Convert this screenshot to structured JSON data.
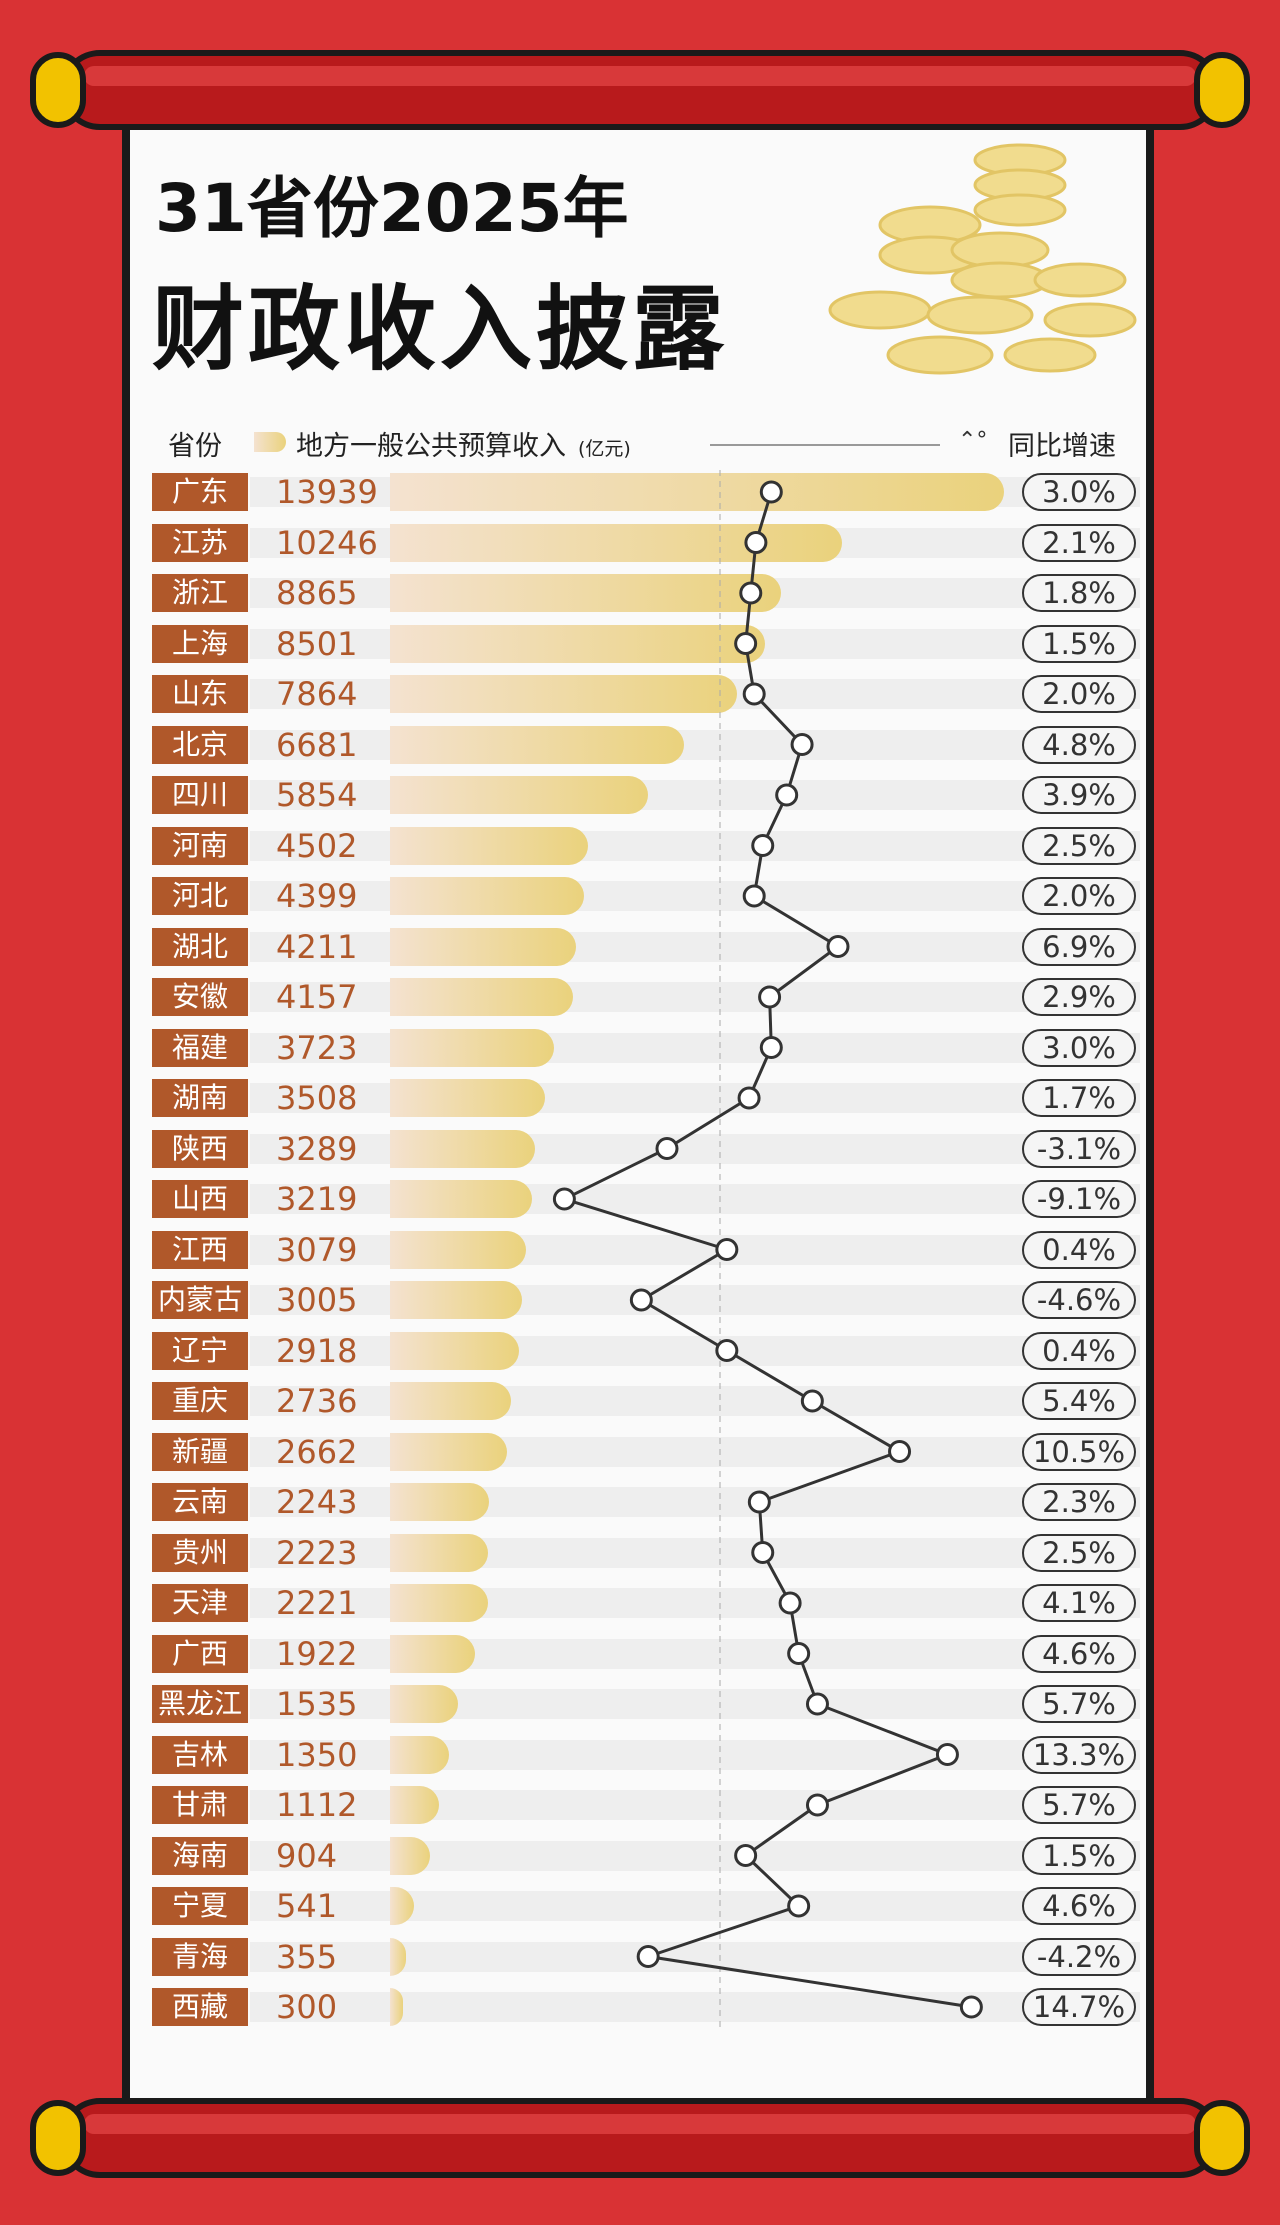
{
  "title_line1": "31省份2025年",
  "title_line2": "财政收入披露",
  "header": {
    "province": "省份",
    "revenue": "地方一般公共预算收入",
    "unit": "(亿元)",
    "growth": "同比增速"
  },
  "colors": {
    "background": "#d93234",
    "label": "#b0582a",
    "bar": "#ead27c",
    "line": "#333333"
  },
  "chart_data": {
    "type": "bar",
    "series_types": {
      "revenue": "bar",
      "growth": "line"
    },
    "categories": [
      "广东",
      "江苏",
      "浙江",
      "上海",
      "山东",
      "北京",
      "四川",
      "河南",
      "河北",
      "湖北",
      "安徽",
      "福建",
      "湖南",
      "陕西",
      "山西",
      "江西",
      "内蒙古",
      "辽宁",
      "重庆",
      "新疆",
      "云南",
      "贵州",
      "天津",
      "广西",
      "黑龙江",
      "吉林",
      "甘肃",
      "海南",
      "宁夏",
      "青海",
      "西藏"
    ],
    "revenue": [
      13939,
      10246,
      8865,
      8501,
      7864,
      6681,
      5854,
      4502,
      4399,
      4211,
      4157,
      3723,
      3508,
      3289,
      3219,
      3079,
      3005,
      2918,
      2736,
      2662,
      2243,
      2223,
      2221,
      1922,
      1535,
      1350,
      1112,
      904,
      541,
      355,
      300
    ],
    "growth": [
      3.0,
      2.1,
      1.8,
      1.5,
      2.0,
      4.8,
      3.9,
      2.5,
      2.0,
      6.9,
      2.9,
      3.0,
      1.7,
      -3.1,
      -9.1,
      0.4,
      -4.6,
      0.4,
      5.4,
      10.5,
      2.3,
      2.5,
      4.1,
      4.6,
      5.7,
      13.3,
      5.7,
      1.5,
      4.6,
      -4.2,
      14.7
    ],
    "growth_labels": [
      "3.0%",
      "2.1%",
      "1.8%",
      "1.5%",
      "2.0%",
      "4.8%",
      "3.9%",
      "2.5%",
      "2.0%",
      "6.9%",
      "2.9%",
      "3.0%",
      "1.7%",
      "-3.1%",
      "-9.1%",
      "0.4%",
      "-4.6%",
      "0.4%",
      "5.4%",
      "10.5%",
      "2.3%",
      "2.5%",
      "4.1%",
      "4.6%",
      "5.7%",
      "13.3%",
      "5.7%",
      "1.5%",
      "4.6%",
      "-4.2%",
      "14.7%"
    ]
  }
}
